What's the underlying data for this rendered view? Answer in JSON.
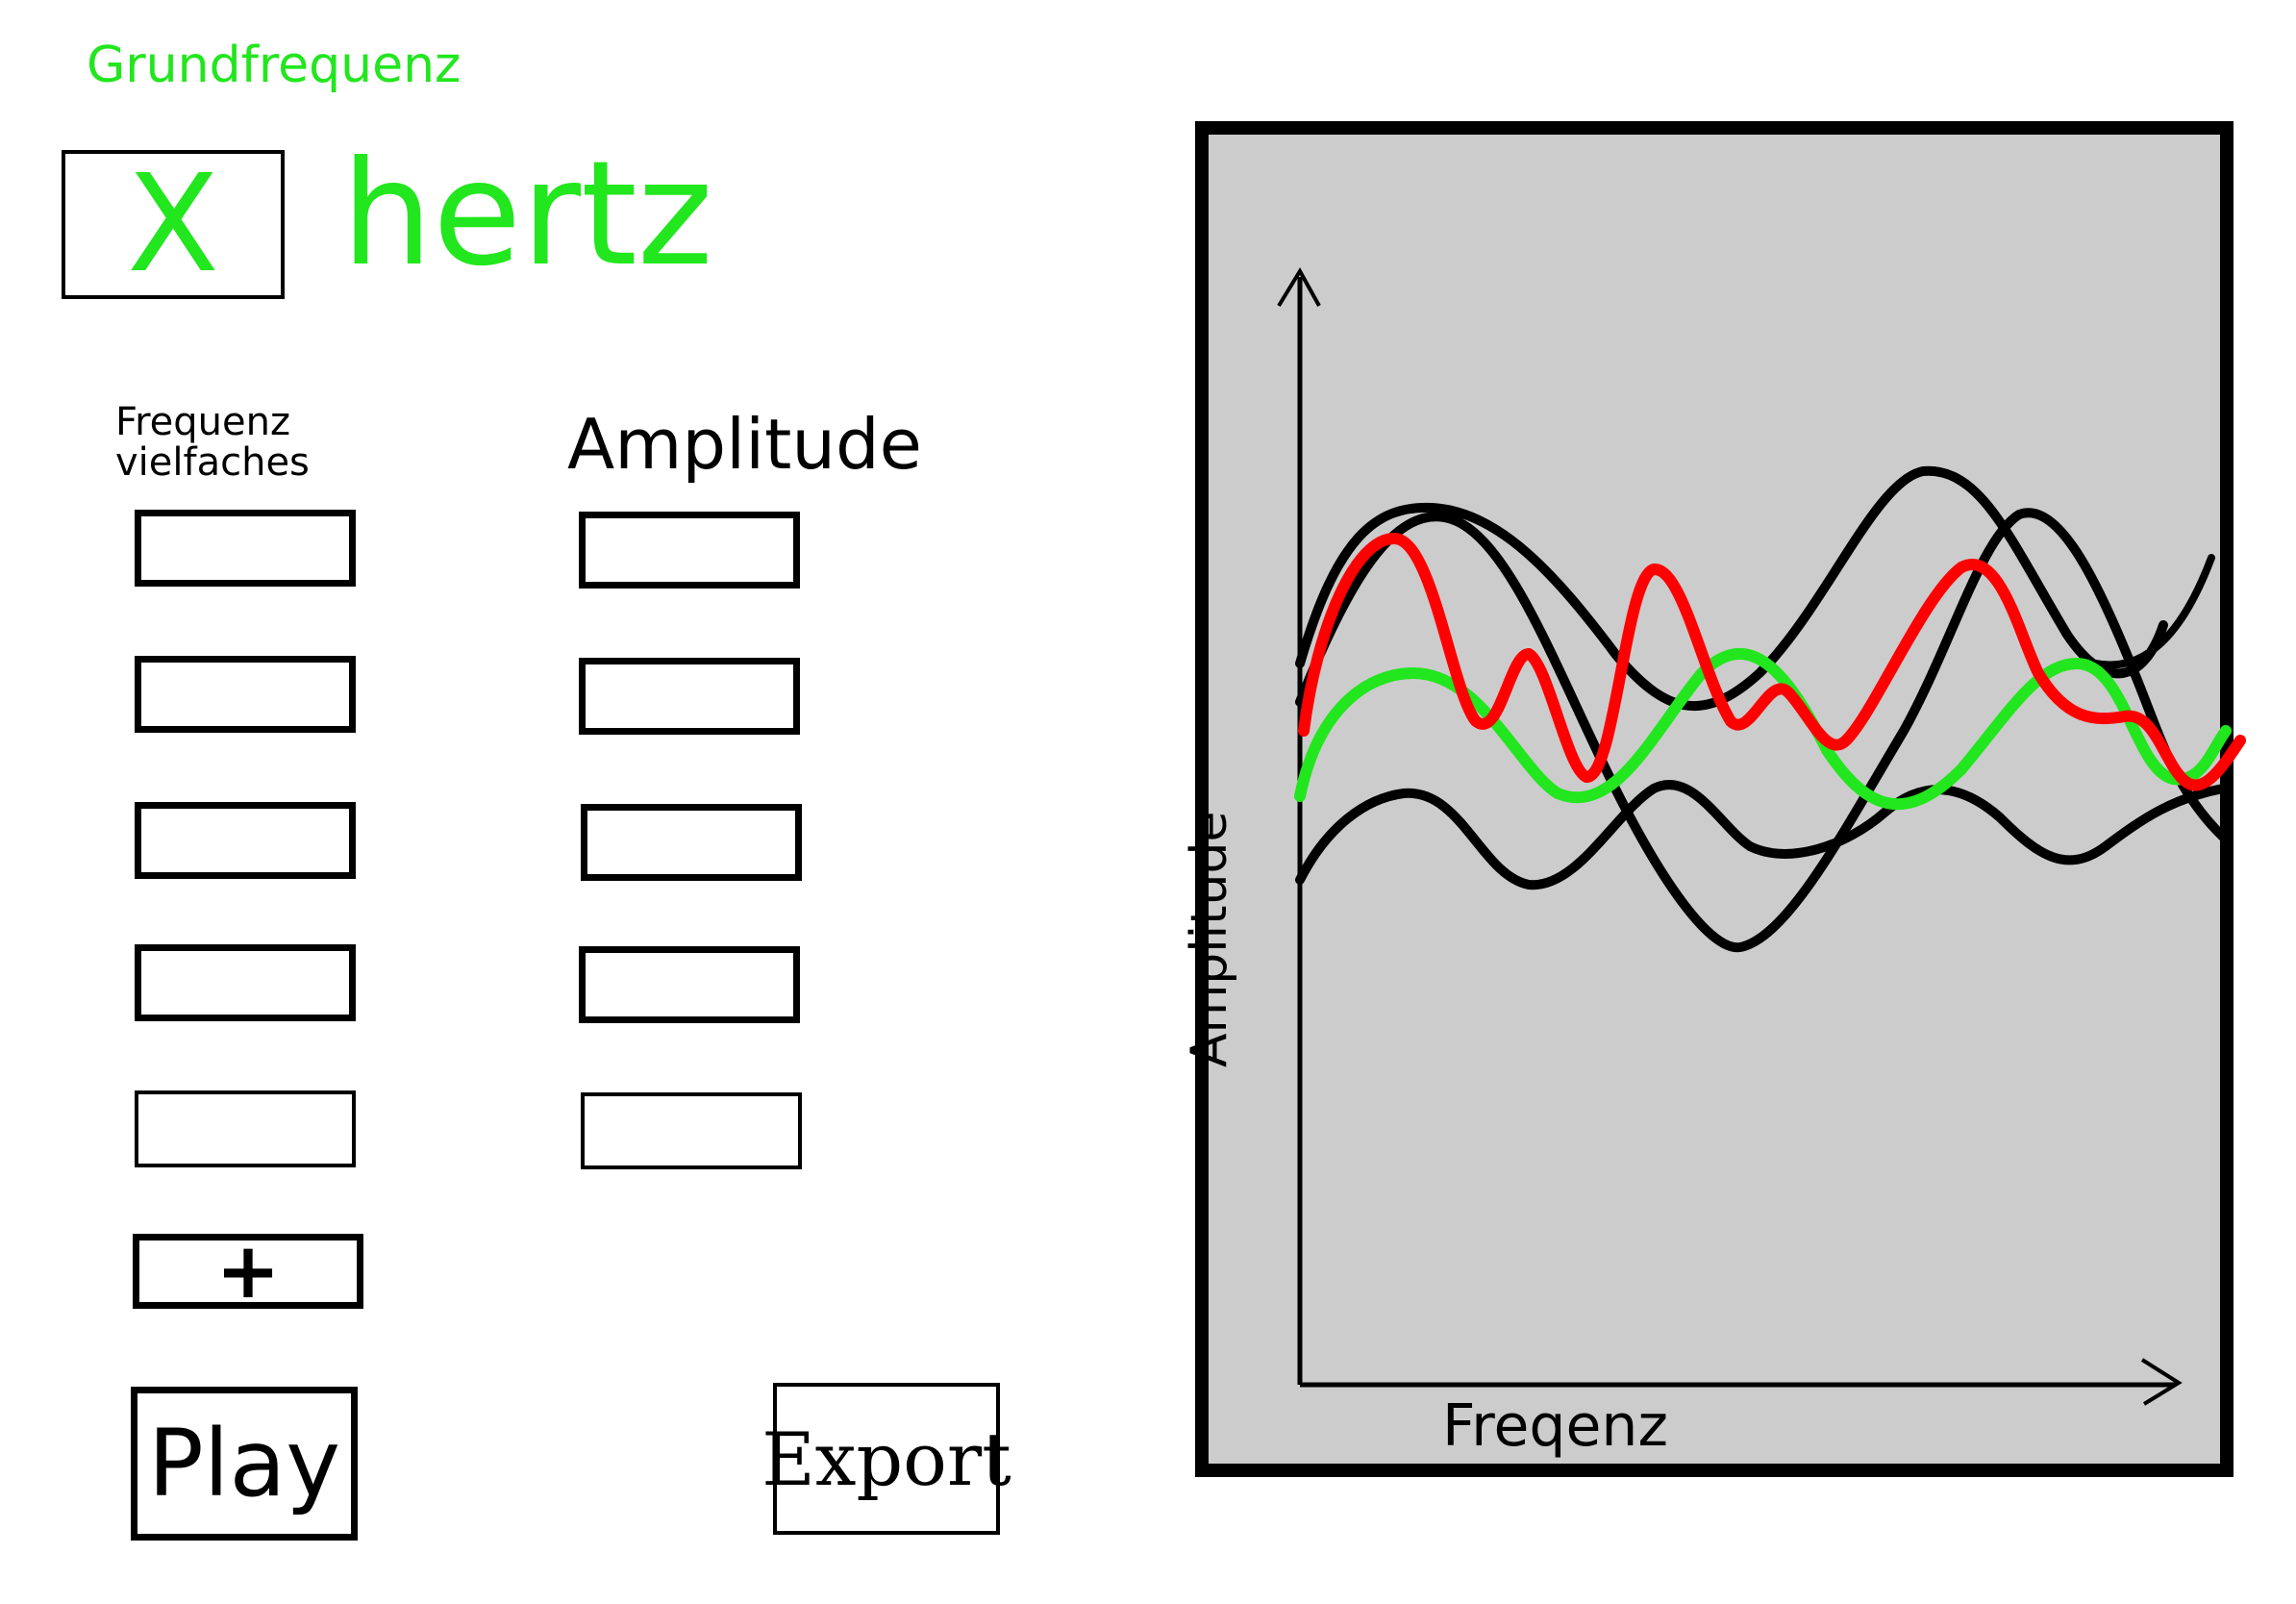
{
  "base_frequency": {
    "label": "Grundfrequenz",
    "value": "X",
    "unit": "hertz"
  },
  "harmonics": {
    "frequency_header": "Frequenz vielfaches",
    "amplitude_header": "Amplitude",
    "rows": [
      {
        "frequency": "",
        "amplitude": ""
      },
      {
        "frequency": "",
        "amplitude": ""
      },
      {
        "frequency": "",
        "amplitude": ""
      },
      {
        "frequency": "",
        "amplitude": ""
      },
      {
        "frequency": "",
        "amplitude": ""
      }
    ],
    "add_label": "+"
  },
  "actions": {
    "play_label": "Play",
    "export_label": "Export"
  },
  "plot": {
    "x_axis_label": "Freqenz",
    "y_axis_label": "Amplitude",
    "colors": {
      "background": "#cccccc",
      "component_waves": "#000000",
      "sum_wave": "#ff0000",
      "fundamental_wave": "#22e61e"
    }
  }
}
